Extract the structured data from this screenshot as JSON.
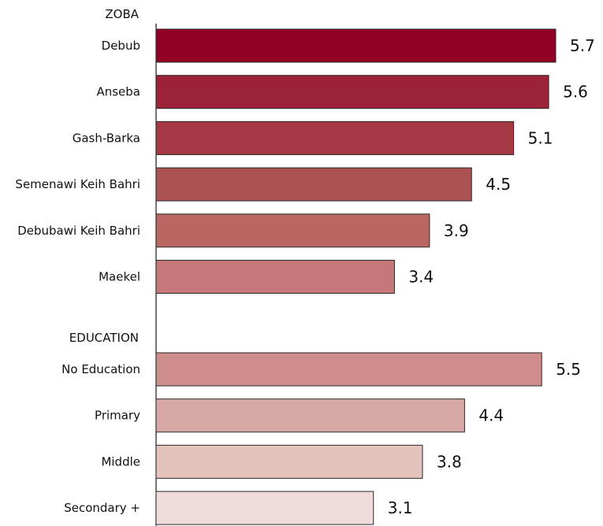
{
  "chart_data": {
    "type": "bar",
    "orientation": "horizontal",
    "title": "",
    "xlabel": "",
    "ylabel": "",
    "xlim": [
      0,
      5.7
    ],
    "grid": false,
    "groups": [
      {
        "heading": "ZOBA",
        "categories": [
          "Debub",
          "Anseba",
          "Gash-Barka",
          "Semenawi Keih Bahri",
          "Debubawi Keih Bahri",
          "Maekel"
        ],
        "values": [
          5.7,
          5.6,
          5.1,
          4.5,
          3.9,
          3.4
        ],
        "value_labels": [
          "5.7",
          "5.6",
          "5.1",
          "4.5",
          "3.9",
          "3.4"
        ],
        "colors": [
          "#930026",
          "#9c2237",
          "#a53a45",
          "#ad5253",
          "#ba6663",
          "#c57877"
        ]
      },
      {
        "heading": "EDUCATION",
        "categories": [
          "No Education",
          "Primary",
          "Middle",
          "Secondary +"
        ],
        "values": [
          5.5,
          4.4,
          3.8,
          3.1
        ],
        "value_labels": [
          "5.5",
          "4.4",
          "3.8",
          "3.1"
        ],
        "colors": [
          "#cf8e8c",
          "#d8a8a4",
          "#e4c3bd",
          "#efdcda"
        ]
      }
    ]
  }
}
